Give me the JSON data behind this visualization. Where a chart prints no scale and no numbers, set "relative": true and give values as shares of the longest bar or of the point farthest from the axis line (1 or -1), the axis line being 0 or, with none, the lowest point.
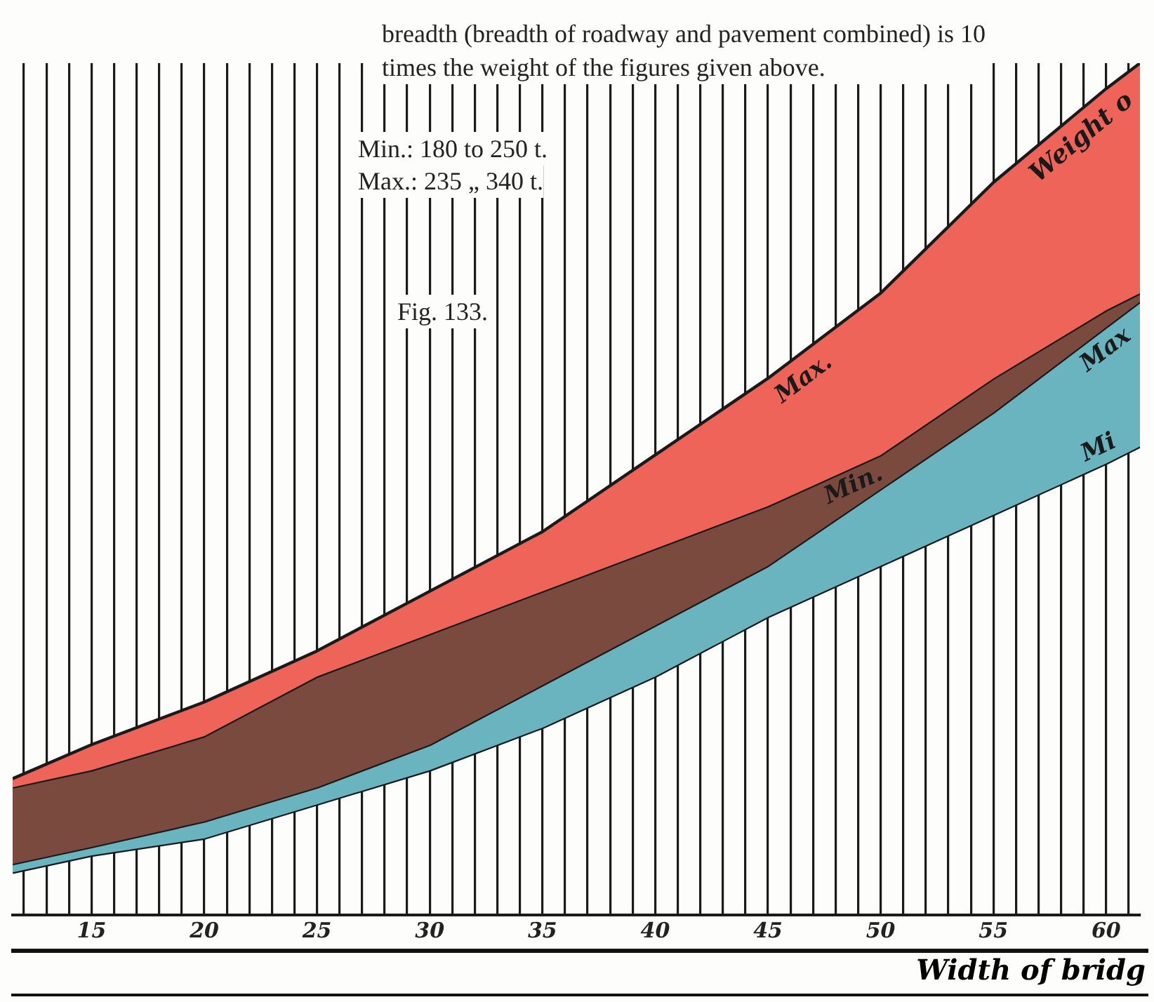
{
  "chart_data": {
    "type": "line",
    "relative": true,
    "xlabel": "Width of bridg",
    "x": [
      11.5,
      15,
      20,
      25,
      30,
      35,
      40,
      45,
      50,
      55,
      60,
      61.5
    ],
    "xlim": [
      11.5,
      61.5
    ],
    "xticks": [
      {
        "value": 12,
        "label": null
      },
      {
        "value": 13,
        "label": null
      },
      {
        "value": 14,
        "label": null
      },
      15,
      {
        "value": 16,
        "label": null
      },
      {
        "value": 17,
        "label": null
      },
      {
        "value": 18,
        "label": null
      },
      {
        "value": 19,
        "label": null
      },
      20,
      {
        "value": 21,
        "label": null
      },
      {
        "value": 22,
        "label": null
      },
      {
        "value": 23,
        "label": null
      },
      {
        "value": 24,
        "label": null
      },
      25,
      {
        "value": 26,
        "label": null
      },
      {
        "value": 27,
        "label": null
      },
      {
        "value": 28,
        "label": null
      },
      {
        "value": 29,
        "label": null
      },
      30,
      {
        "value": 31,
        "label": null
      },
      {
        "value": 32,
        "label": null
      },
      {
        "value": 33,
        "label": null
      },
      {
        "value": 34,
        "label": null
      },
      35,
      {
        "value": 36,
        "label": null
      },
      {
        "value": 37,
        "label": null
      },
      {
        "value": 38,
        "label": null
      },
      {
        "value": 39,
        "label": null
      },
      40,
      {
        "value": 41,
        "label": null
      },
      {
        "value": 42,
        "label": null
      },
      {
        "value": 43,
        "label": null
      },
      {
        "value": 44,
        "label": null
      },
      45,
      {
        "value": 46,
        "label": null
      },
      {
        "value": 47,
        "label": null
      },
      {
        "value": 48,
        "label": null
      },
      {
        "value": 49,
        "label": null
      },
      50,
      {
        "value": 51,
        "label": null
      },
      {
        "value": 52,
        "label": null
      },
      {
        "value": 53,
        "label": null
      },
      {
        "value": 54,
        "label": null
      },
      55,
      {
        "value": 56,
        "label": null
      },
      {
        "value": 57,
        "label": null
      },
      {
        "value": 58,
        "label": null
      },
      {
        "value": 59,
        "label": null
      },
      60,
      {
        "value": 61,
        "label": null
      }
    ],
    "grid": "x",
    "legend": false,
    "marker": "none",
    "line_style": "solid",
    "series": [
      {
        "name": "Max.",
        "type": "area",
        "color": "#ef6458",
        "values": [
          0.16,
          0.2,
          0.25,
          0.31,
          0.38,
          0.45,
          0.54,
          0.63,
          0.73,
          0.86,
          0.97,
          1
        ]
      },
      {
        "name": "Min.",
        "type": "area",
        "color": "#7a4a3e",
        "values": [
          0.15,
          0.17,
          0.21,
          0.28,
          0.33,
          0.38,
          0.43,
          0.48,
          0.54,
          0.63,
          0.71,
          0.73
        ]
      },
      {
        "name": "Max",
        "type": "area",
        "color": "#6ab4c0",
        "values": [
          0.06,
          0.08,
          0.11,
          0.15,
          0.2,
          0.27,
          0.34,
          0.41,
          0.5,
          0.59,
          0.69,
          0.72
        ]
      },
      {
        "name": "Mi",
        "type": "line",
        "color": "#1a1a1a",
        "values": [
          0.05,
          0.07,
          0.09,
          0.13,
          0.17,
          0.22,
          0.28,
          0.35,
          0.41,
          0.47,
          0.53,
          0.55
        ]
      }
    ],
    "annotations": [
      "breadth (breadth of roadway and pavement combined) is 10 times the weight of the figures given above.",
      "Min.: 180 to 250 t.",
      "Max.: 235 „ 340 t.",
      "Fig. 133.",
      "Weight o"
    ]
  }
}
